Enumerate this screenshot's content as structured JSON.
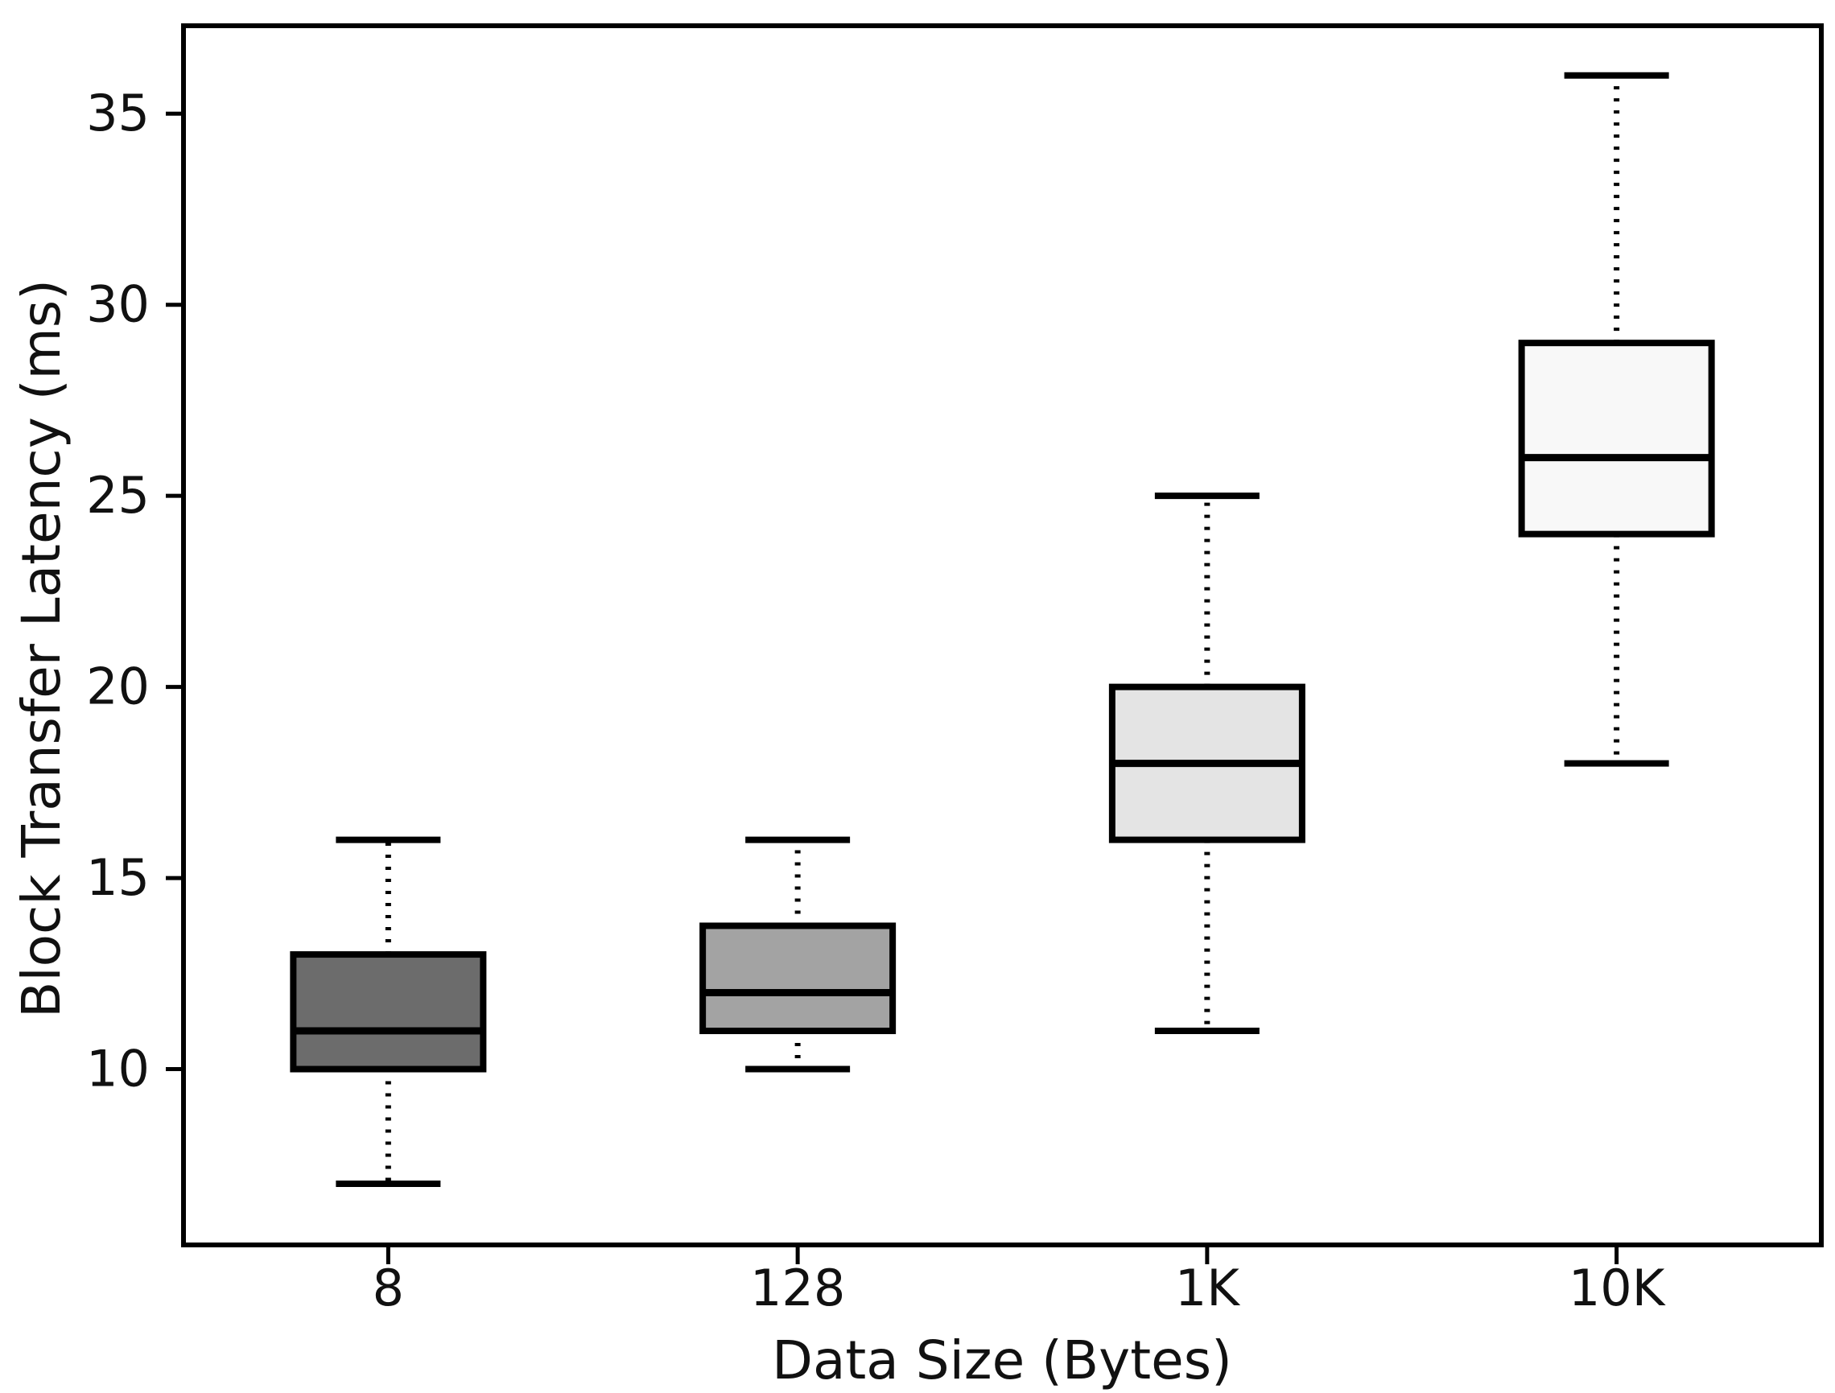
{
  "figure": {
    "background": "#ffffff"
  },
  "chart_data": {
    "type": "box",
    "title": "",
    "xlabel": "Data Size (Bytes)",
    "ylabel": "Block Transfer Latency (ms)",
    "categories": [
      "8",
      "128",
      "1K",
      "10K"
    ],
    "yticks": [
      10,
      15,
      20,
      25,
      30,
      35
    ],
    "ylim": [
      5.4,
      37.3
    ],
    "grid": false,
    "legend": "none",
    "line_color": "#000000",
    "whisker_style": "dotted",
    "series": [
      {
        "category": "8",
        "whisker_low": 7,
        "q1": 10,
        "median": 11,
        "q3": 13,
        "whisker_high": 16,
        "fill": "#6c6c6c"
      },
      {
        "category": "128",
        "whisker_low": 10,
        "q1": 11,
        "median": 12,
        "q3": 13.75,
        "whisker_high": 16,
        "fill": "#a3a3a3"
      },
      {
        "category": "1K",
        "whisker_low": 11,
        "q1": 16,
        "median": 18,
        "q3": 20,
        "whisker_high": 25,
        "fill": "#e4e4e4"
      },
      {
        "category": "10K",
        "whisker_low": 18,
        "q1": 24,
        "median": 26,
        "q3": 29,
        "whisker_high": 36,
        "fill": "#f8f8f8"
      }
    ]
  }
}
